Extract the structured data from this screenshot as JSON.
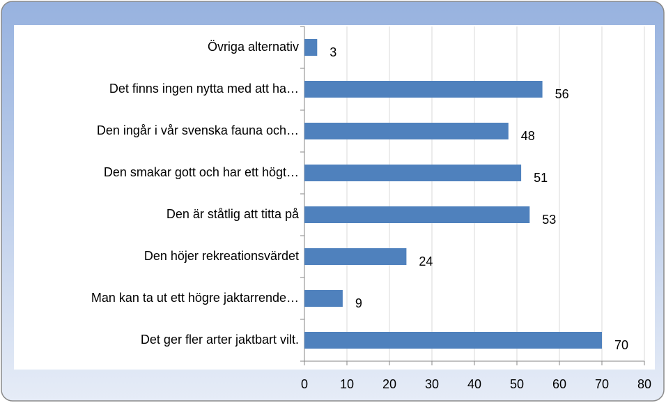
{
  "chart_data": {
    "type": "barh",
    "categories": [
      "Övriga alternativ",
      "Det finns ingen nytta med att ha…",
      "Den ingår i vår svenska fauna och…",
      "Den smakar gott och har ett högt…",
      "Den är ståtlig att titta på",
      "Den höjer rekreationsvärdet",
      "Man kan ta ut ett högre jaktarrende…",
      "Det ger fler arter jaktbart vilt."
    ],
    "values": [
      3,
      56,
      48,
      51,
      53,
      24,
      9,
      70
    ],
    "color": "#4f81bd",
    "xlim": [
      0,
      80
    ],
    "xticks": [
      0,
      10,
      20,
      30,
      40,
      50,
      60,
      70,
      80
    ],
    "grid": true
  }
}
